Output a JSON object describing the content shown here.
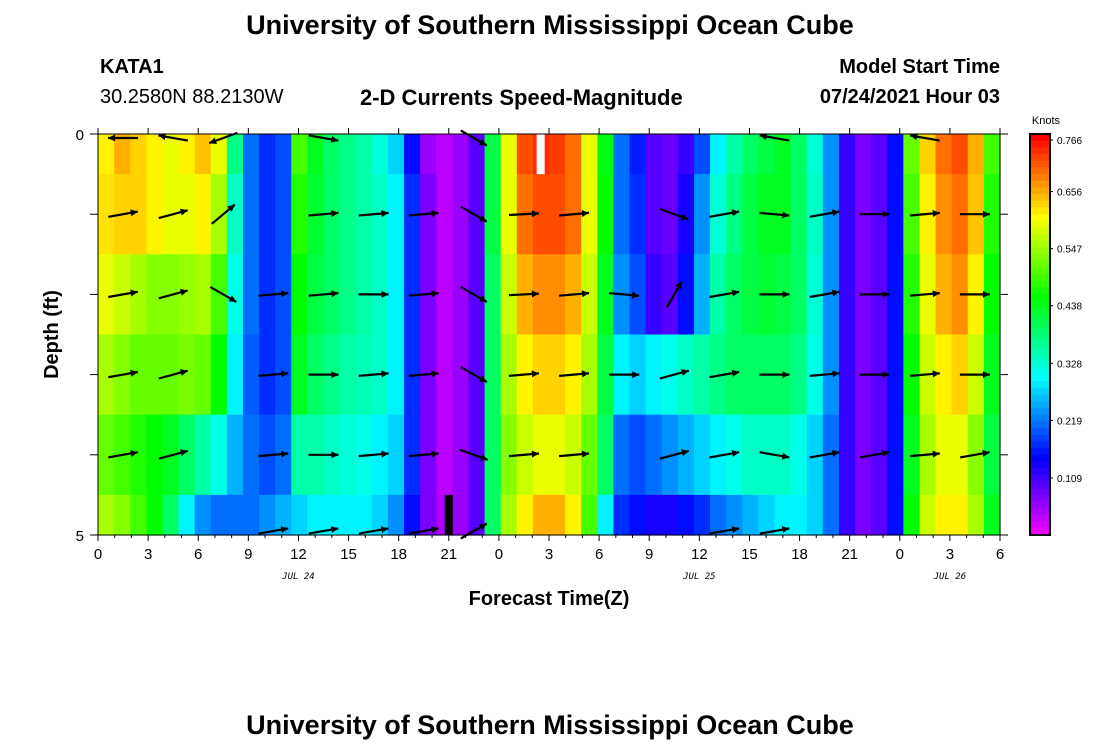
{
  "header": {
    "title": "University of Southern Mississippi Ocean Cube",
    "footer_title": "University of Southern Mississippi Ocean Cube",
    "station": "KATA1",
    "coords": "30.2580N  88.2130W",
    "plot_title": "2-D Currents Speed-Magnitude",
    "model_start_label": "Model Start Time",
    "model_start_value": "07/24/2021 Hour 03"
  },
  "chart_data": {
    "type": "heatmap",
    "title": "2-D Currents Speed-Magnitude",
    "xlabel": "Forecast Time(Z)",
    "ylabel": "Depth (ft)",
    "x_ticks": [
      "0",
      "3",
      "6",
      "9",
      "12",
      "15",
      "18",
      "21",
      "0",
      "3",
      "6",
      "9",
      "12",
      "15",
      "18",
      "21",
      "0",
      "3",
      "6"
    ],
    "x_tick_hours": [
      0,
      3,
      6,
      9,
      12,
      15,
      18,
      21,
      24,
      27,
      30,
      33,
      36,
      39,
      42,
      45,
      48,
      51,
      54
    ],
    "date_labels": [
      {
        "label": "JUL 24",
        "hour": 12
      },
      {
        "label": "JUL 25",
        "hour": 36
      },
      {
        "label": "JUL 26",
        "hour": 51
      }
    ],
    "y_ticks": [
      "0",
      "5"
    ],
    "ylim": [
      0,
      5
    ],
    "xlim": [
      0,
      54
    ],
    "colorbar": {
      "title": "Knots",
      "ticks": [
        "0.766",
        "0.656",
        "0.547",
        "0.438",
        "0.328",
        "0.219",
        "0.109"
      ],
      "min": 0.0,
      "max": 0.766
    },
    "depth_rows": 5,
    "speed_by_row": [
      [
        0.62,
        0.66,
        0.64,
        0.62,
        0.6,
        0.62,
        0.65,
        0.6,
        0.38,
        0.22,
        0.18,
        0.2,
        0.5,
        0.44,
        0.4,
        0.38,
        0.36,
        0.33,
        0.28,
        0.16,
        0.06,
        0.04,
        0.06,
        0.1,
        0.42,
        0.6,
        0.72,
        0.74,
        0.73,
        0.7,
        0.6,
        0.45,
        0.22,
        0.17,
        0.1,
        0.09,
        0.12,
        0.2,
        0.3,
        0.36,
        0.4,
        0.42,
        0.44,
        0.4,
        0.33,
        0.24,
        0.12,
        0.08,
        0.1,
        0.16,
        0.52,
        0.64,
        0.7,
        0.72,
        0.66,
        0.5
      ],
      [
        0.63,
        0.64,
        0.64,
        0.62,
        0.6,
        0.6,
        0.62,
        0.56,
        0.34,
        0.22,
        0.18,
        0.2,
        0.48,
        0.43,
        0.4,
        0.38,
        0.36,
        0.34,
        0.3,
        0.18,
        0.08,
        0.04,
        0.06,
        0.1,
        0.42,
        0.6,
        0.7,
        0.72,
        0.72,
        0.7,
        0.6,
        0.46,
        0.22,
        0.18,
        0.1,
        0.09,
        0.14,
        0.24,
        0.33,
        0.38,
        0.42,
        0.44,
        0.44,
        0.4,
        0.34,
        0.24,
        0.12,
        0.08,
        0.1,
        0.16,
        0.5,
        0.62,
        0.68,
        0.7,
        0.65,
        0.48
      ],
      [
        0.6,
        0.58,
        0.56,
        0.54,
        0.54,
        0.55,
        0.56,
        0.5,
        0.32,
        0.22,
        0.18,
        0.2,
        0.46,
        0.42,
        0.4,
        0.38,
        0.36,
        0.34,
        0.3,
        0.18,
        0.08,
        0.04,
        0.06,
        0.1,
        0.4,
        0.58,
        0.66,
        0.68,
        0.68,
        0.66,
        0.58,
        0.44,
        0.24,
        0.2,
        0.12,
        0.1,
        0.16,
        0.26,
        0.36,
        0.4,
        0.42,
        0.43,
        0.42,
        0.4,
        0.33,
        0.24,
        0.12,
        0.08,
        0.1,
        0.16,
        0.48,
        0.6,
        0.66,
        0.68,
        0.62,
        0.46
      ],
      [
        0.56,
        0.54,
        0.52,
        0.52,
        0.52,
        0.53,
        0.52,
        0.46,
        0.3,
        0.21,
        0.18,
        0.2,
        0.44,
        0.4,
        0.38,
        0.36,
        0.35,
        0.34,
        0.3,
        0.18,
        0.08,
        0.04,
        0.06,
        0.1,
        0.4,
        0.56,
        0.62,
        0.64,
        0.64,
        0.62,
        0.56,
        0.42,
        0.3,
        0.28,
        0.3,
        0.32,
        0.34,
        0.36,
        0.38,
        0.4,
        0.4,
        0.4,
        0.4,
        0.38,
        0.32,
        0.24,
        0.12,
        0.08,
        0.1,
        0.16,
        0.46,
        0.58,
        0.62,
        0.64,
        0.58,
        0.44
      ],
      [
        0.52,
        0.5,
        0.48,
        0.46,
        0.44,
        0.4,
        0.36,
        0.32,
        0.26,
        0.22,
        0.2,
        0.22,
        0.36,
        0.36,
        0.34,
        0.33,
        0.32,
        0.3,
        0.28,
        0.18,
        0.08,
        0.04,
        0.06,
        0.1,
        0.4,
        0.54,
        0.58,
        0.6,
        0.6,
        0.58,
        0.52,
        0.4,
        0.22,
        0.2,
        0.22,
        0.24,
        0.26,
        0.28,
        0.3,
        0.32,
        0.34,
        0.34,
        0.34,
        0.32,
        0.28,
        0.22,
        0.12,
        0.08,
        0.1,
        0.16,
        0.44,
        0.56,
        0.6,
        0.6,
        0.54,
        0.42
      ],
      [
        0.56,
        0.54,
        0.5,
        0.46,
        0.4,
        0.3,
        0.24,
        0.22,
        0.22,
        0.22,
        0.24,
        0.26,
        0.28,
        0.3,
        0.3,
        0.3,
        0.3,
        0.28,
        0.24,
        0.16,
        0.08,
        0.05,
        0.06,
        0.1,
        0.4,
        0.56,
        0.62,
        0.66,
        0.66,
        0.62,
        0.5,
        0.3,
        0.18,
        0.16,
        0.14,
        0.14,
        0.16,
        0.18,
        0.22,
        0.24,
        0.26,
        0.28,
        0.3,
        0.3,
        0.28,
        0.22,
        0.12,
        0.08,
        0.1,
        0.16,
        0.46,
        0.58,
        0.62,
        0.62,
        0.56,
        0.44
      ]
    ],
    "arrow_times_hours": [
      1.5,
      4.5,
      7.5,
      10.5,
      13.5,
      16.5,
      19.5,
      22.5,
      25.5,
      28.5,
      31.5,
      34.5,
      37.5,
      40.5,
      43.5,
      46.5,
      49.5,
      52.5
    ],
    "arrow_depths_ft": [
      0,
      1,
      2,
      3,
      4,
      5
    ],
    "arrow_directions_deg": [
      [
        180,
        170,
        200,
        null,
        -10,
        null,
        null,
        -30,
        null,
        null,
        null,
        null,
        null,
        170,
        null,
        null,
        170,
        null
      ],
      [
        10,
        15,
        40,
        null,
        5,
        5,
        5,
        -30,
        3,
        5,
        null,
        -20,
        10,
        -5,
        10,
        0,
        5,
        0
      ],
      [
        10,
        15,
        -30,
        5,
        5,
        0,
        5,
        -30,
        3,
        5,
        -5,
        60,
        10,
        0,
        10,
        0,
        5,
        0
      ],
      [
        10,
        15,
        null,
        5,
        0,
        5,
        5,
        -30,
        5,
        5,
        0,
        15,
        10,
        0,
        5,
        0,
        5,
        0
      ],
      [
        10,
        15,
        null,
        5,
        0,
        5,
        5,
        -20,
        5,
        5,
        null,
        15,
        10,
        -10,
        10,
        10,
        5,
        10
      ],
      [
        null,
        null,
        null,
        10,
        10,
        10,
        10,
        30,
        null,
        null,
        null,
        null,
        10,
        10,
        null,
        null,
        null,
        null
      ]
    ],
    "markers": [
      {
        "hour": 26.5,
        "depth_start": 0,
        "depth_end": 0.5,
        "color": "#ffffff"
      },
      {
        "hour": 21.0,
        "depth_start": 4.5,
        "depth_end": 5,
        "color": "#000000"
      }
    ]
  }
}
